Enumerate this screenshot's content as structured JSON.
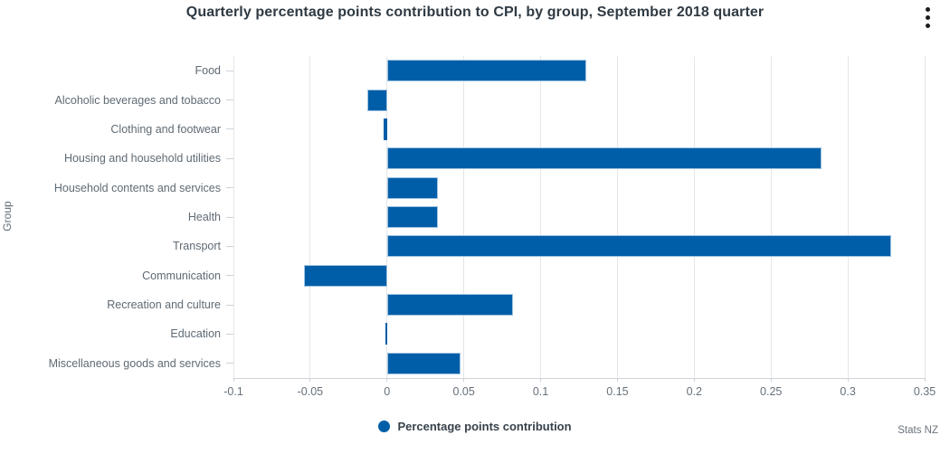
{
  "title": "Quarterly percentage points contribution to CPI, by group, September 2018 quarter",
  "menu": {
    "icon": "kebab-menu",
    "tooltip": "Chart context menu"
  },
  "legend": {
    "label": "Percentage points contribution"
  },
  "credit": "Stats NZ",
  "colors": {
    "bar": "#005ea8",
    "bar_border": "#9fc3e1",
    "grid": "#e6e6e6",
    "axis_text": "#66707a",
    "category_text": "#5f6a74",
    "title_text": "#2f3a43"
  },
  "chart_data": {
    "type": "bar",
    "orientation": "horizontal",
    "title": "Quarterly percentage points contribution to CPI, by group, September 2018 quarter",
    "xlabel": "",
    "ylabel": "Group",
    "categories": [
      "Food",
      "Alcoholic beverages and tobacco",
      "Clothing and footwear",
      "Housing and household utilities",
      "Household contents and services",
      "Health",
      "Transport",
      "Communication",
      "Recreation and culture",
      "Education",
      "Miscellaneous goods and services"
    ],
    "series": [
      {
        "name": "Percentage points contribution",
        "values": [
          0.13,
          -0.013,
          -0.002,
          0.283,
          0.033,
          0.033,
          0.328,
          -0.054,
          0.082,
          -0.001,
          0.048
        ]
      }
    ],
    "xlim": [
      -0.1,
      0.35
    ],
    "x_ticks": [
      -0.1,
      -0.05,
      0,
      0.05,
      0.1,
      0.15,
      0.2,
      0.25,
      0.3,
      0.35
    ],
    "x_tick_labels": [
      "-0.1",
      "-0.05",
      "0",
      "0.05",
      "0.1",
      "0.15",
      "0.2",
      "0.25",
      "0.3",
      "0.35"
    ],
    "grid": true,
    "legend_position": "bottom"
  }
}
